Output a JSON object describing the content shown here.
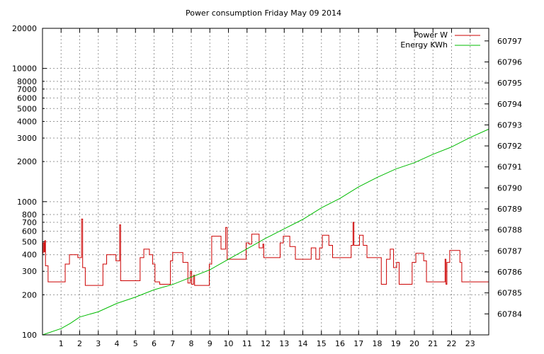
{
  "chart_data": {
    "type": "line",
    "title": "Power consumption Friday May 09 2014",
    "xlabel": "",
    "ylabel": "",
    "y2label": "",
    "xlim": [
      0,
      24
    ],
    "ylim": [
      100,
      20000
    ],
    "y_scale": "log",
    "y2lim": [
      60783.0,
      60797.6
    ],
    "grid": true,
    "legend_position": "top-right",
    "x_ticks": [
      1,
      2,
      3,
      4,
      5,
      6,
      7,
      8,
      9,
      10,
      11,
      12,
      13,
      14,
      15,
      16,
      17,
      18,
      19,
      20,
      21,
      22,
      23
    ],
    "y_ticks": [
      {
        "value": 100,
        "label": "100"
      },
      {
        "value": 200,
        "label": "200"
      },
      {
        "value": 300,
        "label": "300"
      },
      {
        "value": 400,
        "label": "400"
      },
      {
        "value": 500,
        "label": "500"
      },
      {
        "value": 600,
        "label": "600"
      },
      {
        "value": 700,
        "label": "700"
      },
      {
        "value": 800,
        "label": "800"
      },
      {
        "value": 1000,
        "label": "1000"
      },
      {
        "value": 2000,
        "label": "2000"
      },
      {
        "value": 3000,
        "label": "3000"
      },
      {
        "value": 4000,
        "label": "4000"
      },
      {
        "value": 5000,
        "label": "5000"
      },
      {
        "value": 6000,
        "label": "6000"
      },
      {
        "value": 7000,
        "label": "7000"
      },
      {
        "value": 8000,
        "label": "8000"
      },
      {
        "value": 10000,
        "label": "10000"
      },
      {
        "value": 20000,
        "label": "20000"
      }
    ],
    "y2_ticks": [
      {
        "value": 60784,
        "label": "60784"
      },
      {
        "value": 60785,
        "label": "60785"
      },
      {
        "value": 60786,
        "label": "60786"
      },
      {
        "value": 60787,
        "label": "60787"
      },
      {
        "value": 60788,
        "label": "60788"
      },
      {
        "value": 60789,
        "label": "60789"
      },
      {
        "value": 60790,
        "label": "60790"
      },
      {
        "value": 60791,
        "label": "60791"
      },
      {
        "value": 60792,
        "label": "60792"
      },
      {
        "value": 60793,
        "label": "60793"
      },
      {
        "value": 60794,
        "label": "60794"
      },
      {
        "value": 60795,
        "label": "60795"
      },
      {
        "value": 60796,
        "label": "60796"
      },
      {
        "value": 60797,
        "label": "60797"
      }
    ],
    "series": [
      {
        "name": "Power W",
        "axis": "y",
        "color": "#cc0000",
        "step": true,
        "points": [
          [
            0.0,
            410
          ],
          [
            0.03,
            490
          ],
          [
            0.08,
            420
          ],
          [
            0.12,
            510
          ],
          [
            0.16,
            330
          ],
          [
            0.3,
            250
          ],
          [
            1.15,
            250
          ],
          [
            1.22,
            340
          ],
          [
            1.45,
            400
          ],
          [
            1.9,
            380
          ],
          [
            2.1,
            740
          ],
          [
            2.16,
            320
          ],
          [
            2.3,
            235
          ],
          [
            3.15,
            235
          ],
          [
            3.25,
            340
          ],
          [
            3.45,
            400
          ],
          [
            3.95,
            360
          ],
          [
            4.15,
            670
          ],
          [
            4.2,
            255
          ],
          [
            5.1,
            255
          ],
          [
            5.25,
            380
          ],
          [
            5.45,
            440
          ],
          [
            5.75,
            400
          ],
          [
            5.92,
            340
          ],
          [
            6.05,
            250
          ],
          [
            6.3,
            240
          ],
          [
            6.75,
            240
          ],
          [
            6.88,
            360
          ],
          [
            7.0,
            415
          ],
          [
            7.55,
            350
          ],
          [
            7.82,
            245
          ],
          [
            7.95,
            300
          ],
          [
            8.02,
            240
          ],
          [
            8.12,
            280
          ],
          [
            8.18,
            235
          ],
          [
            8.9,
            235
          ],
          [
            8.97,
            340
          ],
          [
            9.1,
            550
          ],
          [
            9.6,
            440
          ],
          [
            9.85,
            640
          ],
          [
            9.93,
            370
          ],
          [
            10.9,
            370
          ],
          [
            10.95,
            490
          ],
          [
            11.1,
            480
          ],
          [
            11.25,
            570
          ],
          [
            11.65,
            450
          ],
          [
            11.85,
            480
          ],
          [
            11.9,
            380
          ],
          [
            12.7,
            380
          ],
          [
            12.78,
            490
          ],
          [
            12.95,
            550
          ],
          [
            13.3,
            460
          ],
          [
            13.6,
            370
          ],
          [
            14.1,
            370
          ],
          [
            14.45,
            450
          ],
          [
            14.7,
            370
          ],
          [
            14.9,
            450
          ],
          [
            15.05,
            560
          ],
          [
            15.4,
            470
          ],
          [
            15.6,
            380
          ],
          [
            16.45,
            380
          ],
          [
            16.6,
            470
          ],
          [
            16.7,
            700
          ],
          [
            16.75,
            470
          ],
          [
            17.05,
            560
          ],
          [
            17.25,
            470
          ],
          [
            17.45,
            380
          ],
          [
            18.05,
            380
          ],
          [
            18.22,
            240
          ],
          [
            18.5,
            370
          ],
          [
            18.7,
            440
          ],
          [
            18.88,
            320
          ],
          [
            19.05,
            350
          ],
          [
            19.18,
            240
          ],
          [
            19.75,
            240
          ],
          [
            19.88,
            350
          ],
          [
            20.08,
            410
          ],
          [
            20.5,
            360
          ],
          [
            20.65,
            250
          ],
          [
            21.6,
            250
          ],
          [
            21.65,
            370
          ],
          [
            21.7,
            240
          ],
          [
            21.75,
            350
          ],
          [
            21.9,
            430
          ],
          [
            22.45,
            350
          ],
          [
            22.55,
            250
          ],
          [
            24.0,
            250
          ]
        ]
      },
      {
        "name": "Energy KWh",
        "axis": "y2",
        "color": "#00bb00",
        "step": false,
        "points": [
          [
            0.0,
            60783.0
          ],
          [
            1.0,
            60783.3
          ],
          [
            1.5,
            60783.55
          ],
          [
            2.0,
            60783.85
          ],
          [
            3.0,
            60784.1
          ],
          [
            4.0,
            60784.5
          ],
          [
            5.0,
            60784.8
          ],
          [
            6.0,
            60785.15
          ],
          [
            7.0,
            60785.4
          ],
          [
            8.0,
            60785.75
          ],
          [
            9.0,
            60786.1
          ],
          [
            10.0,
            60786.6
          ],
          [
            11.0,
            60787.1
          ],
          [
            12.0,
            60787.6
          ],
          [
            13.0,
            60788.05
          ],
          [
            14.0,
            60788.5
          ],
          [
            15.0,
            60789.05
          ],
          [
            16.0,
            60789.5
          ],
          [
            17.0,
            60790.05
          ],
          [
            18.0,
            60790.5
          ],
          [
            19.0,
            60790.9
          ],
          [
            20.0,
            60791.2
          ],
          [
            21.0,
            60791.6
          ],
          [
            22.0,
            60791.95
          ],
          [
            23.0,
            60792.4
          ],
          [
            24.0,
            60792.8
          ]
        ]
      }
    ]
  }
}
